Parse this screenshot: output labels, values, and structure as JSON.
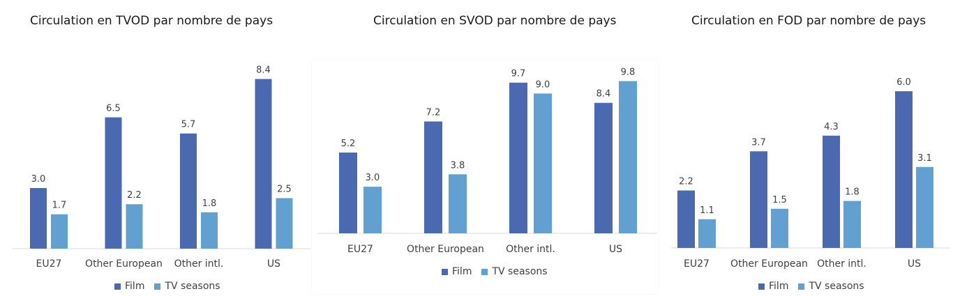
{
  "colors": {
    "film": "#4a69b0",
    "tv": "#62a0d2",
    "axis": "#d9d9d9"
  },
  "chart_data": [
    {
      "type": "bar",
      "title": "Circulation en TVOD par nombre de pays",
      "categories": [
        "EU27",
        "Other European",
        "Other intl.",
        "US"
      ],
      "series": [
        {
          "name": "Film",
          "values": [
            3.0,
            6.5,
            5.7,
            8.4
          ]
        },
        {
          "name": "TV seasons",
          "values": [
            1.7,
            2.2,
            1.8,
            2.5
          ]
        }
      ],
      "legend_position": "bottom"
    },
    {
      "type": "bar",
      "title": "Circulation en SVOD par nombre de pays",
      "categories": [
        "EU27",
        "Other European",
        "Other intl.",
        "US"
      ],
      "series": [
        {
          "name": "Film",
          "values": [
            5.2,
            7.2,
            9.7,
            8.4
          ]
        },
        {
          "name": "TV seasons",
          "values": [
            3.0,
            3.8,
            9.0,
            9.8
          ]
        }
      ],
      "legend_position": "bottom"
    },
    {
      "type": "bar",
      "title": "Circulation en FOD par nombre de pays",
      "categories": [
        "EU27",
        "Other European",
        "Other intl.",
        "US"
      ],
      "series": [
        {
          "name": "Film",
          "values": [
            2.2,
            3.7,
            4.3,
            6.0
          ]
        },
        {
          "name": "TV seasons",
          "values": [
            1.1,
            1.5,
            1.8,
            3.1
          ]
        }
      ],
      "legend_position": "bottom"
    }
  ]
}
